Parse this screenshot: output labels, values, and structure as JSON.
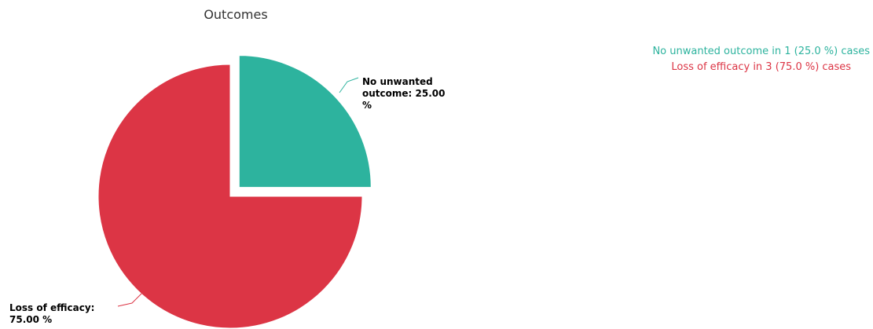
{
  "chart_data": {
    "type": "pie",
    "title": "Outcomes",
    "slices": [
      {
        "name": "No unwanted outcome",
        "value": 25.0,
        "color": "#2db39e",
        "label_lines": [
          "No unwanted",
          "outcome: 25.00",
          "%"
        ]
      },
      {
        "name": "Loss of efficacy",
        "value": 75.0,
        "color": "#dc3545",
        "label_lines": [
          "Loss of efficacy:",
          "75.00 %"
        ]
      }
    ]
  },
  "summary": {
    "no_unwanted": "No unwanted outcome in 1 (25.0 %) cases",
    "loss_of_efficacy": "Loss of efficacy in 3 (75.0 %) cases"
  }
}
